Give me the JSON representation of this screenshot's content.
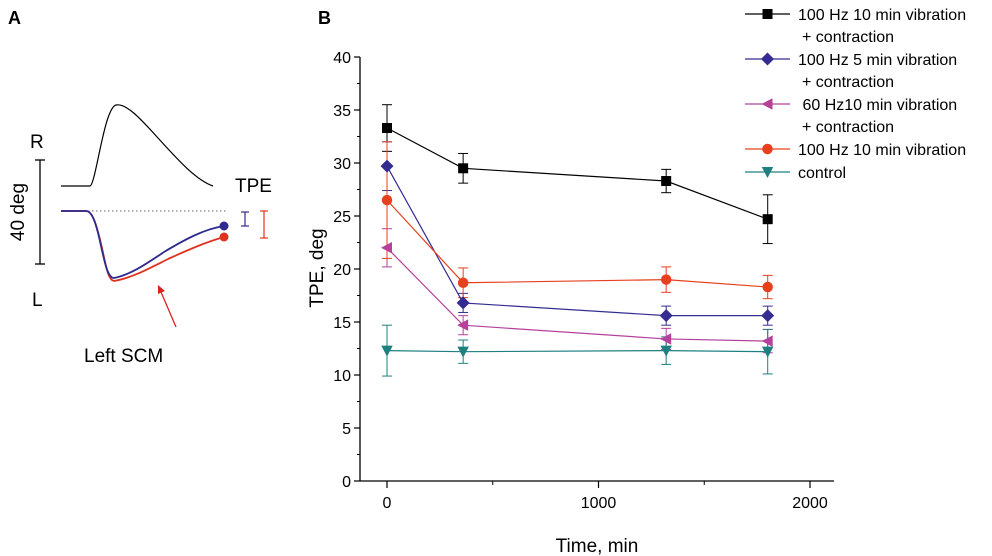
{
  "panel_a": {
    "label": "A",
    "scale_label": "40 deg",
    "right_label": "R",
    "left_label": "L",
    "tpe_label": "TPE",
    "muscle_label": "Left SCM",
    "colors": {
      "trace": "#000000",
      "blue": "#2e2a8f",
      "red": "#e0321e",
      "dotted": "#666666",
      "arrow": "#d9231f"
    }
  },
  "chart_data": {
    "type": "line",
    "panel_label": "B",
    "title": "",
    "xlabel": "Time, min",
    "ylabel": "TPE, deg",
    "xlim": [
      -30,
      2000
    ],
    "ylim": [
      0,
      40
    ],
    "xticks": [
      0,
      1000,
      2000
    ],
    "yticks": [
      0,
      5,
      10,
      15,
      20,
      25,
      30,
      35,
      40
    ],
    "grid": false,
    "legend_position": "top-right",
    "x": [
      0,
      360,
      1320,
      1800
    ],
    "series": [
      {
        "name_lines": [
          "100 Hz 10 min vibration",
          "+ contraction"
        ],
        "color": "#000000",
        "marker": "square",
        "values": [
          33.3,
          29.5,
          28.3,
          24.7
        ],
        "errors": [
          2.2,
          1.4,
          1.1,
          2.3
        ]
      },
      {
        "name_lines": [
          "100 Hz 5 min vibration",
          "+ contraction"
        ],
        "color": "#352c92",
        "marker": "diamond",
        "values": [
          29.7,
          16.8,
          15.6,
          15.6
        ],
        "errors": [
          2.3,
          0.9,
          0.9,
          0.9
        ]
      },
      {
        "name_lines": [
          " 60 Hz10 min vibration",
          "+ contraction"
        ],
        "color": "#b5419b",
        "marker": "triangle-left",
        "values": [
          22.0,
          14.7,
          13.4,
          13.2
        ],
        "errors": [
          1.8,
          0.9,
          1.0,
          1.1
        ]
      },
      {
        "name_lines": [
          "100 Hz 10 min vibration"
        ],
        "color": "#e6401f",
        "marker": "circle",
        "values": [
          26.5,
          18.7,
          19.0,
          18.3
        ],
        "errors": [
          5.5,
          1.4,
          1.2,
          1.1
        ]
      },
      {
        "name_lines": [
          "control"
        ],
        "color": "#1f8080",
        "marker": "triangle-down",
        "values": [
          12.3,
          12.2,
          12.3,
          12.2
        ],
        "errors": [
          2.4,
          1.1,
          1.3,
          2.1
        ]
      }
    ]
  }
}
